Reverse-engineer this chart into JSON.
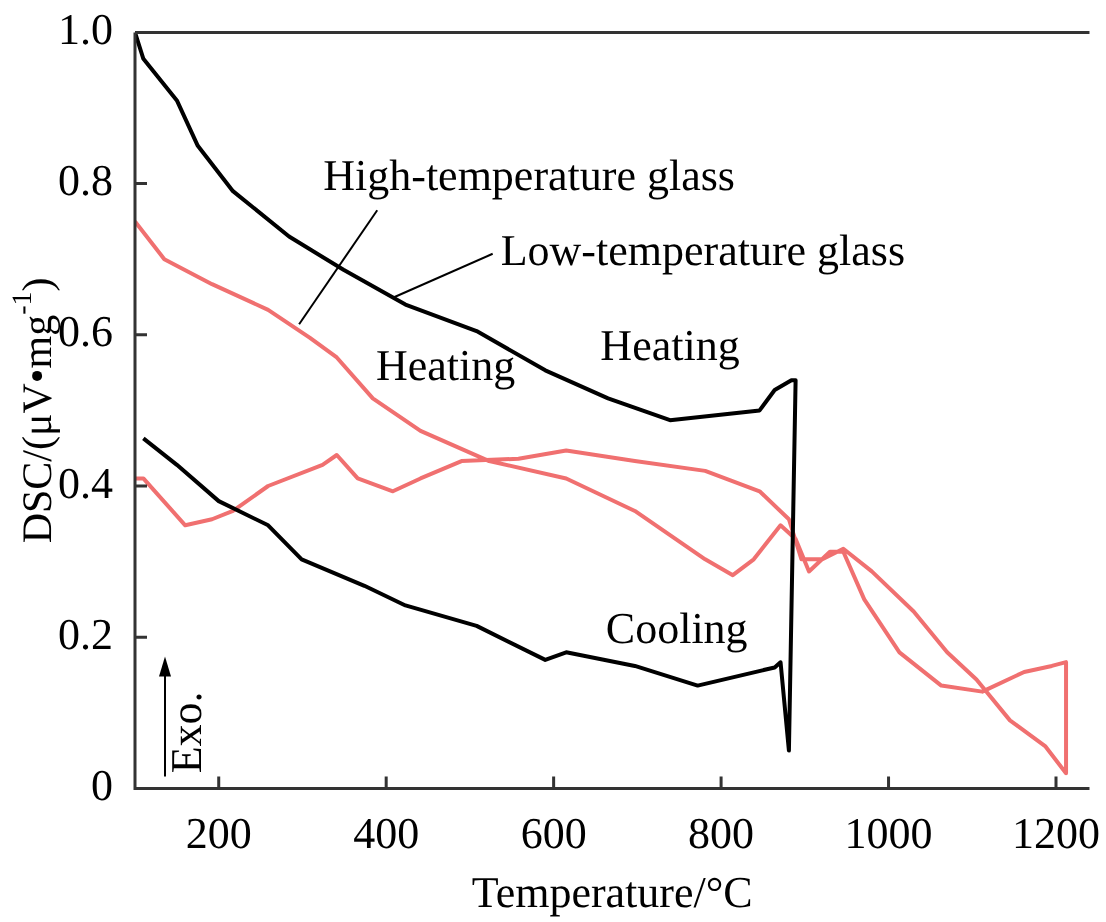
{
  "chart_data": {
    "type": "line",
    "xlabel": "Temperature/°C",
    "ylabel": "DSC/(μV•mg$^{-1}$)",
    "xlim": [
      100,
      1240
    ],
    "xticks": [
      200,
      400,
      600,
      800,
      1000,
      1200
    ],
    "ylim": [
      0,
      1
    ],
    "yticks": [
      0,
      0.2,
      0.4,
      0.6,
      0.8,
      {
        "value": 1,
        "label": "1.0"
      }
    ],
    "grid": false,
    "legend": false,
    "marker": "none",
    "line_style": "solid",
    "series": [
      {
        "color": "#000000",
        "x": [
          100,
          110,
          150,
          175,
          217,
          284,
          349,
          423,
          508,
          590,
          665,
          739,
          846,
          864,
          884,
          889,
          881,
          871,
          864,
          772,
          697,
          615,
          590,
          508,
          423,
          374,
          299,
          259,
          200,
          150,
          110
        ],
        "values": [
          1.0,
          0.965,
          0.91,
          0.85,
          0.79,
          0.73,
          0.686,
          0.64,
          0.605,
          0.553,
          0.516,
          0.487,
          0.5,
          0.527,
          0.54,
          0.54,
          0.05,
          0.167,
          0.16,
          0.136,
          0.162,
          0.18,
          0.17,
          0.215,
          0.242,
          0.268,
          0.303,
          0.348,
          0.38,
          0.428,
          0.463
        ]
      },
      {
        "color": "#f07070",
        "x": [
          100,
          135,
          192,
          259,
          309,
          341,
          384,
          441,
          523,
          615,
          697,
          781,
          814,
          839,
          871,
          889,
          905,
          930,
          946,
          971,
          1013,
          1063,
          1112,
          1162,
          1195,
          1212,
          1212,
          1187,
          1145,
          1105,
          1070,
          1030,
          980,
          946,
          921,
          896,
          881,
          846,
          781,
          697,
          615,
          558,
          490,
          441,
          408,
          366,
          341,
          324,
          259,
          217,
          192,
          160,
          110,
          100
        ],
        "values": [
          0.75,
          0.7,
          0.667,
          0.633,
          0.596,
          0.57,
          0.516,
          0.473,
          0.433,
          0.41,
          0.367,
          0.303,
          0.282,
          0.303,
          0.348,
          0.33,
          0.287,
          0.313,
          0.313,
          0.25,
          0.18,
          0.136,
          0.128,
          0.154,
          0.162,
          0.167,
          0.02,
          0.056,
          0.09,
          0.144,
          0.18,
          0.234,
          0.287,
          0.317,
          0.303,
          0.303,
          0.356,
          0.393,
          0.42,
          0.433,
          0.447,
          0.436,
          0.433,
          0.41,
          0.393,
          0.41,
          0.441,
          0.428,
          0.4,
          0.367,
          0.356,
          0.348,
          0.41,
          0.41
        ]
      }
    ],
    "annotations": [
      {
        "text": "High-temperature glass",
        "x": 296,
        "y": 0.614
      },
      {
        "text": "Low-temperature glass",
        "x": 408,
        "y": 0.649
      },
      "Heating",
      "Heating",
      "Cooling",
      "Exo."
    ]
  }
}
